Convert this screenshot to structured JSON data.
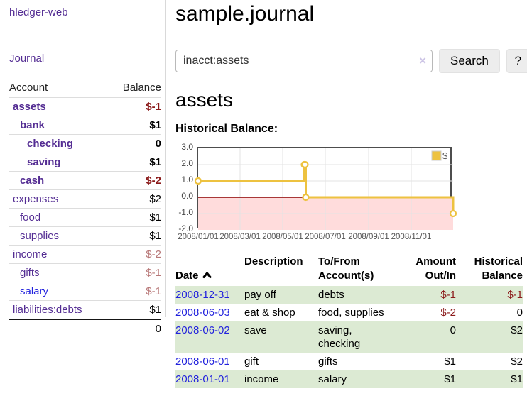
{
  "sidebar": {
    "brand": "hledger-web",
    "journal_link": "Journal",
    "headers": [
      "Account",
      "Balance"
    ],
    "rows": [
      {
        "account": "assets",
        "balance": "$-1",
        "depth": 1,
        "matched": true,
        "neg": "strong"
      },
      {
        "account": "bank",
        "balance": "$1",
        "depth": 2,
        "matched": true
      },
      {
        "account": "checking",
        "balance": "0",
        "depth": 3,
        "matched": true
      },
      {
        "account": "saving",
        "balance": "$1",
        "depth": 3,
        "matched": true
      },
      {
        "account": "cash",
        "balance": "$-2",
        "depth": 2,
        "matched": true,
        "neg": "strong"
      },
      {
        "account": "expenses",
        "balance": "$2",
        "depth": 1
      },
      {
        "account": "food",
        "balance": "$1",
        "depth": 2
      },
      {
        "account": "supplies",
        "balance": "$1",
        "depth": 2
      },
      {
        "account": "income",
        "balance": "$-2",
        "depth": 1,
        "neg": "soft"
      },
      {
        "account": "gifts",
        "balance": "$-1",
        "depth": 2,
        "neg": "soft"
      },
      {
        "account": "salary",
        "balance": "$-1",
        "depth": 2,
        "neg": "soft",
        "unvisited": true
      },
      {
        "account": "liabilities:debts",
        "balance": "$1",
        "depth": 1
      }
    ],
    "total": "0"
  },
  "main": {
    "title": "sample.journal",
    "search": {
      "value": "inacct:assets",
      "clear_icon": "×",
      "button": "Search",
      "help_button": "?"
    },
    "account_heading": "assets",
    "chart_label": "Historical Balance:"
  },
  "chart_data": {
    "type": "line",
    "title": "Historical Balance:",
    "legend": "$",
    "step": true,
    "series": [
      {
        "name": "$",
        "points": [
          [
            "2008-01-01",
            1
          ],
          [
            "2008-06-01",
            2
          ],
          [
            "2008-06-02",
            2
          ],
          [
            "2008-06-03",
            0
          ],
          [
            "2008-12-31",
            -1
          ]
        ]
      }
    ],
    "x_ticks": [
      "2008/01/01",
      "2008/03/01",
      "2008/05/01",
      "2008/07/01",
      "2008/09/01",
      "2008/11/01"
    ],
    "y_ticks": [
      "3.0",
      "2.0",
      "1.0",
      "0.0",
      "-1.0",
      "-2.0"
    ],
    "xlim": [
      "2008-01-01",
      "2008-12-31"
    ],
    "ylim": [
      -2,
      3
    ],
    "grid": true,
    "legend_position": "top-right",
    "colors": {
      "series": "#edc240",
      "marker_fill": "#ffffff",
      "zero_line": "#8b0000",
      "negative_region": "#ffdcdc",
      "gridline": "#e3e3e3",
      "plot_border": "#4d4d4d",
      "axis_text": "#545454"
    }
  },
  "register": {
    "headers": [
      "Date",
      "Description",
      "To/From\nAccount(s)",
      "Amount\nOut/In",
      "Historical\nBalance"
    ],
    "rows": [
      {
        "date": "2008-12-31",
        "description": "pay off",
        "accounts": "debts",
        "amount": "$-1",
        "balance": "$-1"
      },
      {
        "date": "2008-06-03",
        "description": "eat & shop",
        "accounts": "food, supplies",
        "amount": "$-2",
        "balance": "0"
      },
      {
        "date": "2008-06-02",
        "description": "save",
        "accounts": "saving,\nchecking",
        "amount": "0",
        "balance": "$2"
      },
      {
        "date": "2008-06-01",
        "description": "gift",
        "accounts": "gifts",
        "amount": "$1",
        "balance": "$2"
      },
      {
        "date": "2008-01-01",
        "description": "income",
        "accounts": "salary",
        "amount": "$1",
        "balance": "$1"
      }
    ]
  }
}
